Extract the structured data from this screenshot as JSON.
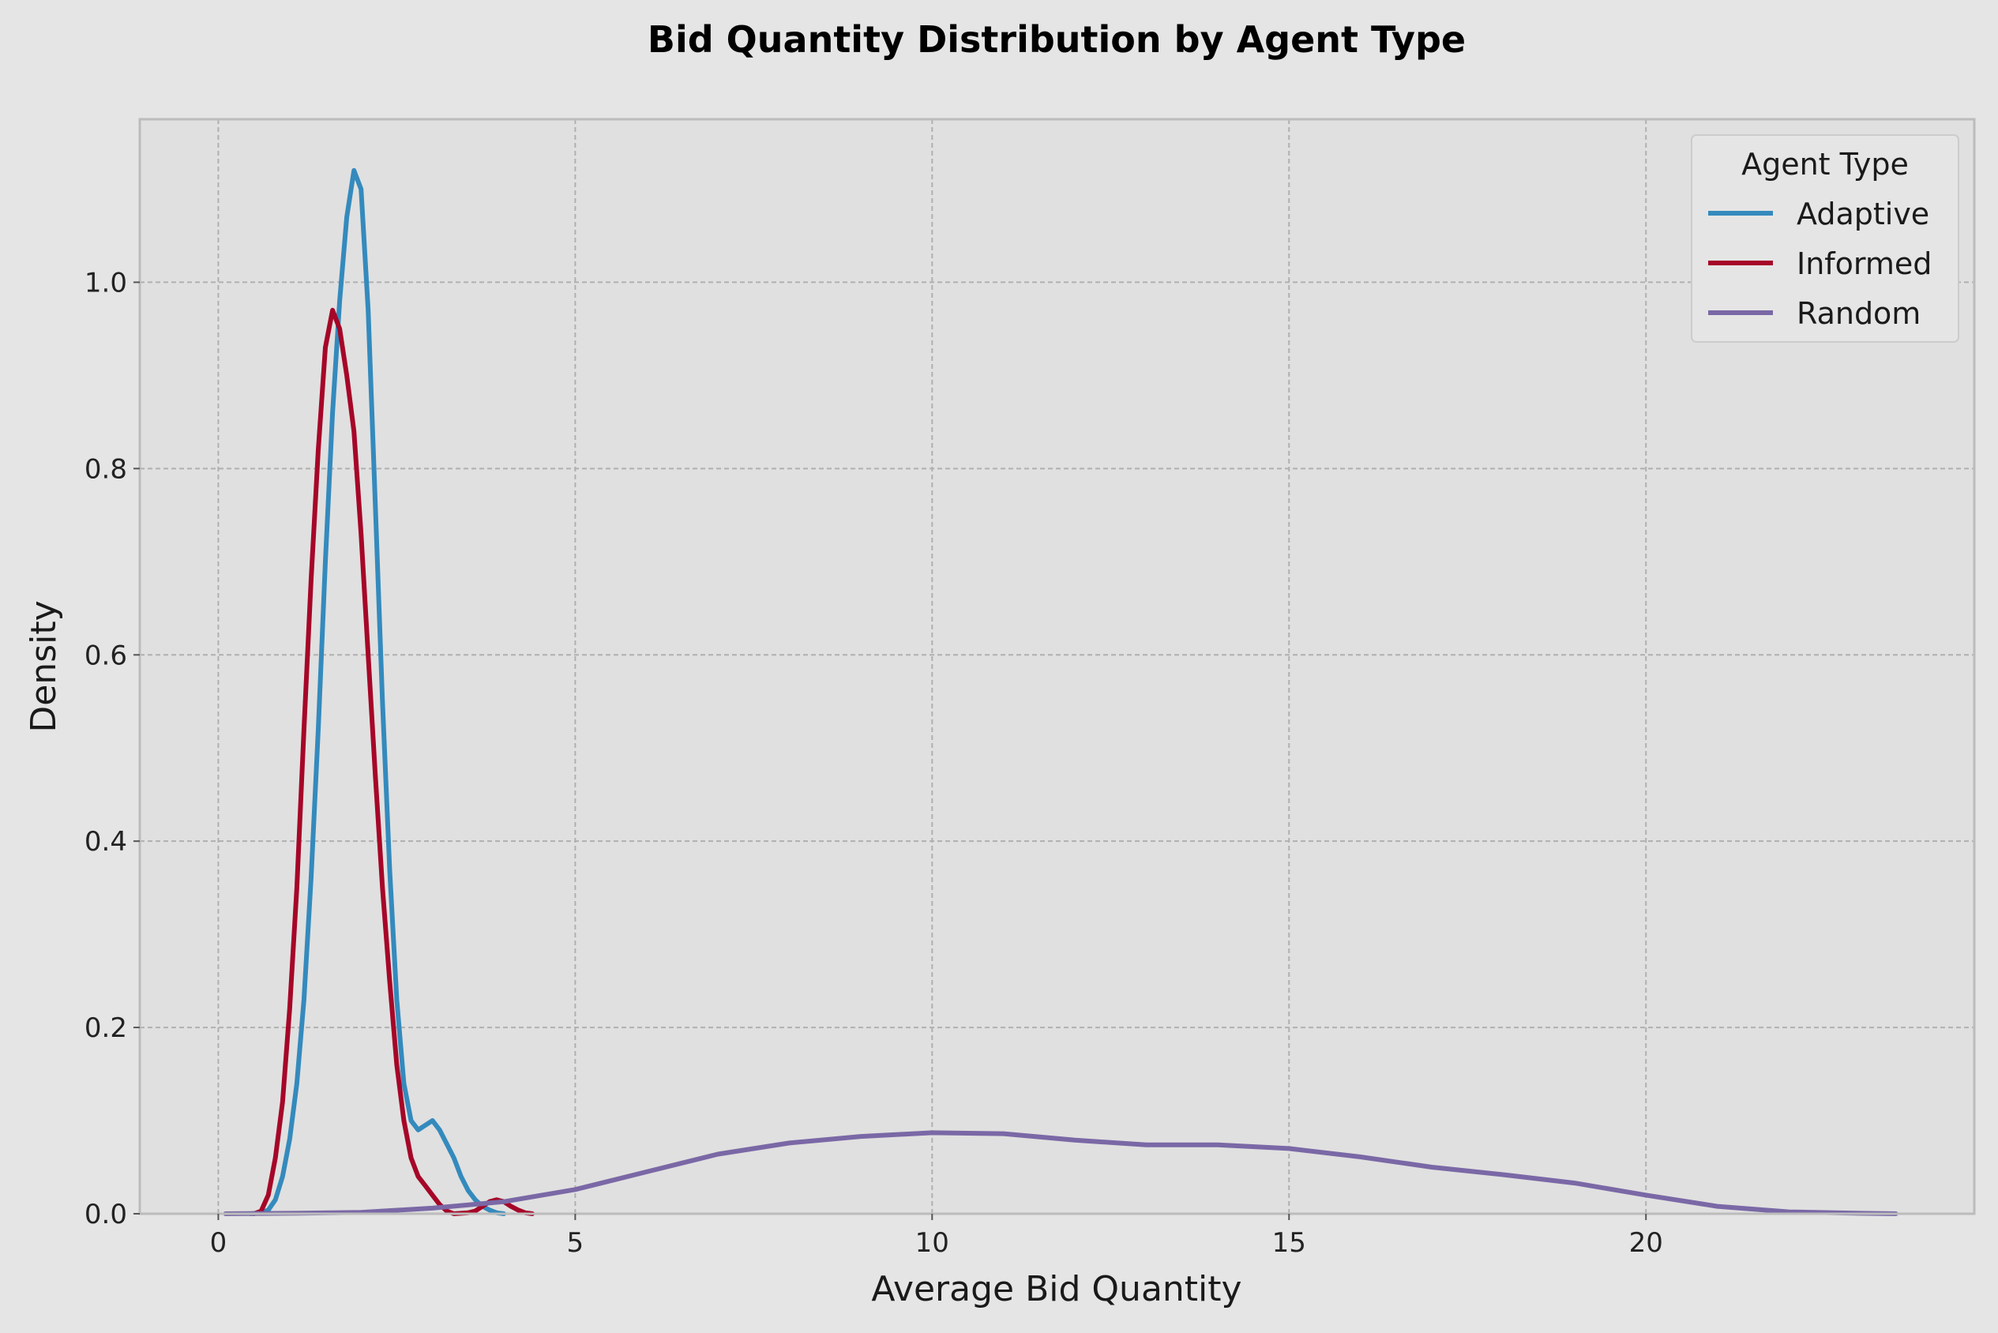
{
  "chart_data": {
    "type": "line",
    "title": "Bid Quantity Distribution by Agent Type",
    "xlabel": "Average Bid Quantity",
    "ylabel": "Density",
    "xlim": [
      -1.1,
      24.6
    ],
    "ylim": [
      0,
      1.175
    ],
    "x_ticks": [
      0,
      5,
      10,
      15,
      20
    ],
    "x_tick_labels": [
      "0",
      "5",
      "10",
      "15",
      "20"
    ],
    "y_ticks": [
      0.0,
      0.2,
      0.4,
      0.6,
      0.8,
      1.0
    ],
    "y_tick_labels": [
      "0.0",
      "0.2",
      "0.4",
      "0.6",
      "0.8",
      "1.0"
    ],
    "grid": true,
    "legend": {
      "title": "Agent Type",
      "position": "top-right"
    },
    "series": [
      {
        "name": "Adaptive",
        "color": "#348abd",
        "points": [
          [
            0.45,
            0
          ],
          [
            0.6,
            0.001
          ],
          [
            0.7,
            0.004
          ],
          [
            0.8,
            0.015
          ],
          [
            0.9,
            0.04
          ],
          [
            1.0,
            0.08
          ],
          [
            1.1,
            0.14
          ],
          [
            1.2,
            0.23
          ],
          [
            1.3,
            0.36
          ],
          [
            1.4,
            0.52
          ],
          [
            1.5,
            0.7
          ],
          [
            1.6,
            0.86
          ],
          [
            1.7,
            0.98
          ],
          [
            1.8,
            1.07
          ],
          [
            1.9,
            1.12
          ],
          [
            2.0,
            1.1
          ],
          [
            2.1,
            0.97
          ],
          [
            2.2,
            0.76
          ],
          [
            2.3,
            0.55
          ],
          [
            2.4,
            0.37
          ],
          [
            2.5,
            0.23
          ],
          [
            2.6,
            0.14
          ],
          [
            2.7,
            0.1
          ],
          [
            2.8,
            0.09
          ],
          [
            2.9,
            0.095
          ],
          [
            3.0,
            0.1
          ],
          [
            3.1,
            0.09
          ],
          [
            3.2,
            0.075
          ],
          [
            3.3,
            0.06
          ],
          [
            3.4,
            0.04
          ],
          [
            3.5,
            0.025
          ],
          [
            3.6,
            0.015
          ],
          [
            3.7,
            0.008
          ],
          [
            3.8,
            0.004
          ],
          [
            3.9,
            0.001
          ],
          [
            4.0,
            0
          ]
        ]
      },
      {
        "name": "Informed",
        "color": "#a60628",
        "points": [
          [
            0.5,
            0
          ],
          [
            0.6,
            0.003
          ],
          [
            0.7,
            0.02
          ],
          [
            0.8,
            0.06
          ],
          [
            0.9,
            0.12
          ],
          [
            1.0,
            0.22
          ],
          [
            1.1,
            0.35
          ],
          [
            1.2,
            0.52
          ],
          [
            1.3,
            0.68
          ],
          [
            1.4,
            0.82
          ],
          [
            1.5,
            0.93
          ],
          [
            1.6,
            0.97
          ],
          [
            1.7,
            0.95
          ],
          [
            1.8,
            0.9
          ],
          [
            1.9,
            0.84
          ],
          [
            2.0,
            0.73
          ],
          [
            2.1,
            0.6
          ],
          [
            2.2,
            0.47
          ],
          [
            2.3,
            0.35
          ],
          [
            2.4,
            0.25
          ],
          [
            2.5,
            0.16
          ],
          [
            2.6,
            0.1
          ],
          [
            2.7,
            0.06
          ],
          [
            2.8,
            0.04
          ],
          [
            2.9,
            0.03
          ],
          [
            3.0,
            0.02
          ],
          [
            3.1,
            0.01
          ],
          [
            3.2,
            0.003
          ],
          [
            3.3,
            0
          ],
          [
            3.5,
            0.001
          ],
          [
            3.6,
            0.003
          ],
          [
            3.7,
            0.008
          ],
          [
            3.8,
            0.013
          ],
          [
            3.9,
            0.015
          ],
          [
            4.0,
            0.013
          ],
          [
            4.1,
            0.008
          ],
          [
            4.2,
            0.004
          ],
          [
            4.3,
            0.001
          ],
          [
            4.4,
            0
          ]
        ]
      },
      {
        "name": "Random",
        "color": "#7a68a6",
        "points": [
          [
            0.1,
            0
          ],
          [
            1,
            0.0005
          ],
          [
            2,
            0.0015
          ],
          [
            3,
            0.006
          ],
          [
            4,
            0.013
          ],
          [
            5,
            0.026
          ],
          [
            6,
            0.045
          ],
          [
            7,
            0.064
          ],
          [
            8,
            0.076
          ],
          [
            9,
            0.083
          ],
          [
            10,
            0.087
          ],
          [
            11,
            0.086
          ],
          [
            12,
            0.079
          ],
          [
            13,
            0.074
          ],
          [
            14,
            0.074
          ],
          [
            15,
            0.07
          ],
          [
            16,
            0.061
          ],
          [
            17,
            0.05
          ],
          [
            18,
            0.042
          ],
          [
            19,
            0.033
          ],
          [
            20,
            0.02
          ],
          [
            21,
            0.008
          ],
          [
            22,
            0.002
          ],
          [
            23,
            0.0005
          ],
          [
            23.5,
            0
          ]
        ]
      }
    ]
  }
}
